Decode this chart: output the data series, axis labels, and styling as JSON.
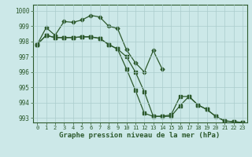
{
  "background_color": "#cce8e8",
  "grid_color": "#aacccc",
  "line_color": "#2d5a2d",
  "title": "Graphe pression niveau de la mer (hPa)",
  "ylim": [
    992.7,
    1000.4
  ],
  "xlim": [
    -0.5,
    23.5
  ],
  "yticks": [
    993,
    994,
    995,
    996,
    997,
    998,
    999,
    1000
  ],
  "xticks": [
    0,
    1,
    2,
    3,
    4,
    5,
    6,
    7,
    8,
    9,
    10,
    11,
    12,
    13,
    14,
    15,
    16,
    17,
    18,
    19,
    20,
    21,
    22,
    23
  ],
  "series1_x": [
    0,
    1,
    2,
    3,
    4,
    5,
    6,
    7,
    8,
    9,
    10,
    11,
    12,
    13,
    14
  ],
  "series1_y": [
    997.8,
    998.9,
    998.4,
    999.3,
    999.25,
    999.4,
    999.7,
    999.6,
    999.0,
    998.85,
    997.45,
    996.6,
    996.0,
    997.4,
    996.2
  ],
  "series2_x": [
    0,
    1,
    2,
    3,
    4,
    5,
    6,
    7,
    8,
    9,
    10,
    11,
    12,
    13,
    14,
    15,
    16,
    17,
    18,
    19,
    20,
    21,
    22,
    23
  ],
  "series2_y": [
    997.8,
    998.4,
    998.25,
    998.25,
    998.25,
    998.3,
    998.3,
    998.2,
    997.8,
    997.5,
    997.0,
    996.0,
    994.7,
    993.1,
    993.1,
    993.2,
    994.4,
    994.4,
    993.85,
    993.55,
    993.1,
    992.8,
    992.75,
    992.7
  ],
  "series3_x": [
    0,
    1,
    2,
    3,
    4,
    5,
    6,
    7,
    8,
    9,
    10,
    11,
    12,
    13,
    14,
    15,
    16,
    17,
    18,
    19,
    20,
    21,
    22,
    23
  ],
  "series3_y": [
    997.8,
    998.4,
    998.25,
    998.25,
    998.25,
    998.3,
    998.3,
    998.2,
    997.8,
    997.5,
    996.2,
    994.8,
    993.3,
    993.1,
    993.1,
    993.1,
    993.8,
    994.4,
    993.85,
    993.55,
    993.1,
    992.8,
    992.75,
    992.7
  ]
}
